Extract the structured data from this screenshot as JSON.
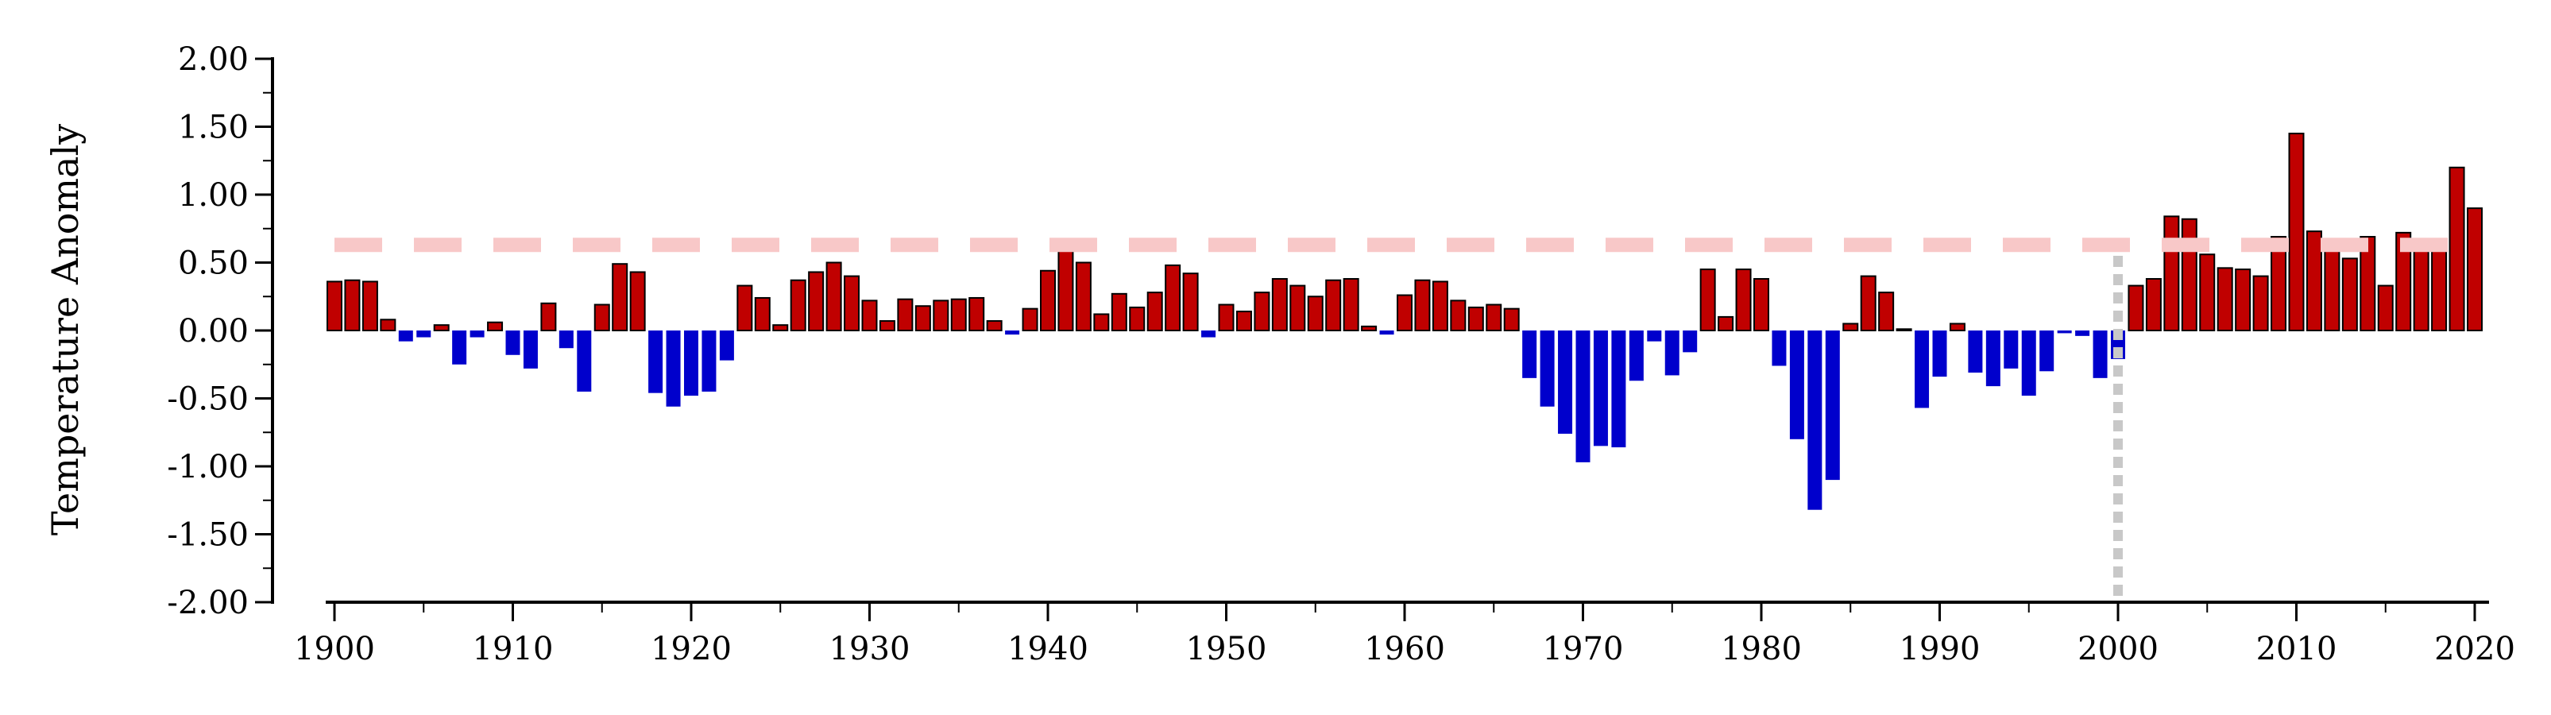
{
  "chart_data": {
    "type": "bar",
    "ylabel": "Temperature Anomaly",
    "xlabel": "",
    "ylim": [
      -2.0,
      2.0
    ],
    "xlim": [
      1899.5,
      2020.5
    ],
    "y_ticks": [
      "2.00",
      "1.50",
      "1.00",
      "0.50",
      "0.00",
      "-0.50",
      "-1.00",
      "-1.50",
      "-2.00"
    ],
    "x_ticks": [
      "1900",
      "1910",
      "1920",
      "1930",
      "1940",
      "1950",
      "1960",
      "1970",
      "1980",
      "1990",
      "2000",
      "2010",
      "2020"
    ],
    "reference_line_y": 0.63,
    "reference_line_x": 2000,
    "colors": {
      "positive": "#c00000",
      "negative": "#0000cc",
      "reference_h": "#f8c8c8",
      "reference_v": "#c8c8c8"
    },
    "x": [
      1900,
      1901,
      1902,
      1903,
      1904,
      1905,
      1906,
      1907,
      1908,
      1909,
      1910,
      1911,
      1912,
      1913,
      1914,
      1915,
      1916,
      1917,
      1918,
      1919,
      1920,
      1921,
      1922,
      1923,
      1924,
      1925,
      1926,
      1927,
      1928,
      1929,
      1930,
      1931,
      1932,
      1933,
      1934,
      1935,
      1936,
      1937,
      1938,
      1939,
      1940,
      1941,
      1942,
      1943,
      1944,
      1945,
      1946,
      1947,
      1948,
      1949,
      1950,
      1951,
      1952,
      1953,
      1954,
      1955,
      1956,
      1957,
      1958,
      1959,
      1960,
      1961,
      1962,
      1963,
      1964,
      1965,
      1966,
      1967,
      1968,
      1969,
      1970,
      1971,
      1972,
      1973,
      1974,
      1975,
      1976,
      1977,
      1978,
      1979,
      1980,
      1981,
      1982,
      1983,
      1984,
      1985,
      1986,
      1987,
      1988,
      1989,
      1990,
      1991,
      1992,
      1993,
      1994,
      1995,
      1996,
      1997,
      1998,
      1999,
      2000,
      2001,
      2002,
      2003,
      2004,
      2005,
      2006,
      2007,
      2008,
      2009,
      2010,
      2011,
      2012,
      2013,
      2014,
      2015,
      2016,
      2017,
      2018,
      2019,
      2020
    ],
    "values": [
      0.36,
      0.37,
      0.36,
      0.08,
      -0.08,
      -0.05,
      0.04,
      -0.25,
      -0.05,
      0.06,
      -0.18,
      -0.28,
      0.2,
      -0.13,
      -0.45,
      0.19,
      0.49,
      0.43,
      -0.46,
      -0.56,
      -0.48,
      -0.45,
      -0.22,
      0.33,
      0.24,
      0.04,
      0.37,
      0.43,
      0.5,
      0.4,
      0.22,
      0.07,
      0.23,
      0.18,
      0.22,
      0.23,
      0.24,
      0.07,
      -0.03,
      0.16,
      0.44,
      0.62,
      0.5,
      0.12,
      0.27,
      0.17,
      0.28,
      0.48,
      0.42,
      -0.05,
      0.19,
      0.14,
      0.28,
      0.38,
      0.33,
      0.25,
      0.37,
      0.38,
      0.03,
      -0.03,
      0.26,
      0.37,
      0.36,
      0.22,
      0.17,
      0.19,
      0.16,
      -0.35,
      -0.56,
      -0.76,
      -0.97,
      -0.85,
      -0.86,
      -0.37,
      -0.08,
      -0.33,
      -0.16,
      0.45,
      0.1,
      0.45,
      0.38,
      -0.26,
      -0.8,
      -1.32,
      -1.1,
      0.05,
      0.4,
      0.28,
      0.01,
      -0.57,
      -0.34,
      0.05,
      -0.31,
      -0.41,
      -0.28,
      -0.48,
      -0.3,
      -0.02,
      -0.04,
      -0.35,
      -0.21,
      0.33,
      0.38,
      0.84,
      0.82,
      0.56,
      0.46,
      0.45,
      0.4,
      0.69,
      1.45,
      0.73,
      0.62,
      0.53,
      0.69,
      0.33,
      0.72,
      0.64,
      0.64,
      1.2,
      0.9
    ]
  }
}
